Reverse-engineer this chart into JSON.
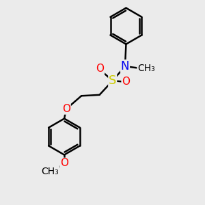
{
  "bg_color": "#ebebeb",
  "atom_colors": {
    "C": "#000000",
    "O": "#ff0000",
    "N": "#0000ee",
    "S": "#cccc00"
  },
  "bond_color": "#000000",
  "bond_width": 1.8,
  "font_size": 11
}
